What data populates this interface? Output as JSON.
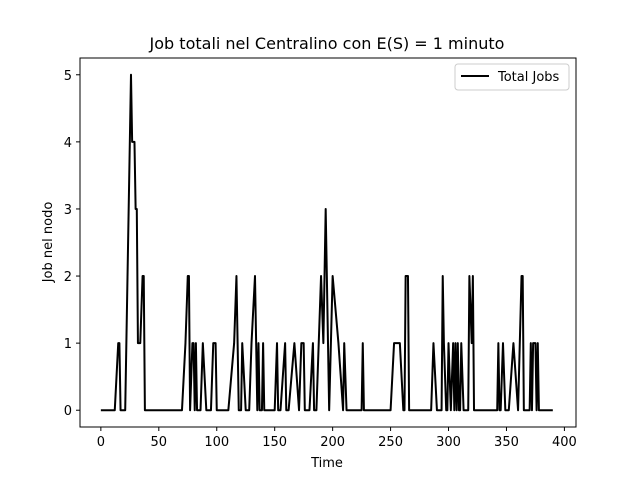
{
  "chart_data": {
    "type": "line",
    "title": "Job totali nel Centralino con E(S) = 1 minuto",
    "xlabel": "Time",
    "ylabel": "Job nel nodo",
    "xlim": [
      -18,
      410
    ],
    "ylim": [
      -0.25,
      5.25
    ],
    "x_ticks": [
      0,
      50,
      100,
      150,
      200,
      250,
      300,
      350,
      400
    ],
    "y_ticks": [
      0,
      1,
      2,
      3,
      4,
      5
    ],
    "grid": false,
    "legend_position": "top-right",
    "series": [
      {
        "name": "Total Jobs",
        "color": "#000000",
        "x": [
          0,
          12,
          15,
          16,
          17,
          21,
          22,
          25,
          26,
          27,
          28,
          29,
          30,
          31,
          32,
          33,
          34,
          36,
          37,
          38,
          39,
          40,
          45,
          55,
          65,
          70,
          73,
          75,
          76,
          77,
          79,
          80,
          81,
          82,
          83,
          84,
          85,
          86,
          88,
          91,
          92,
          93,
          95,
          97,
          98,
          99,
          100,
          101,
          103,
          110,
          115,
          117,
          118,
          119,
          120,
          121,
          122,
          125,
          128,
          130,
          133,
          134,
          135,
          136,
          137,
          138,
          139,
          140,
          141,
          142,
          144,
          148,
          150,
          152,
          153,
          155,
          159,
          160,
          161,
          162,
          167,
          171,
          173,
          175,
          176,
          180,
          183,
          184,
          186,
          188,
          190,
          192,
          193,
          194,
          195,
          196,
          197,
          200,
          205,
          209,
          210,
          212,
          215,
          220,
          225,
          226,
          227,
          230,
          235,
          240,
          245,
          250,
          253,
          256,
          258,
          261,
          262,
          263,
          264,
          265,
          266,
          270,
          275,
          280,
          285,
          287,
          290,
          293,
          294,
          295,
          296,
          298,
          299,
          300,
          302,
          304,
          305,
          306,
          307,
          308,
          309,
          310,
          311,
          313,
          317,
          318,
          320,
          321,
          322,
          323,
          324,
          325,
          327,
          330,
          335,
          340,
          342,
          343,
          344,
          345,
          347,
          349,
          350,
          352,
          356,
          360,
          363,
          364,
          365,
          366,
          367,
          368,
          370,
          371,
          372,
          373,
          374,
          375,
          376,
          377,
          378,
          380,
          382,
          386,
          387,
          388,
          389,
          390
        ],
        "y": [
          0,
          0,
          1,
          1,
          0,
          0,
          1,
          4,
          5,
          4,
          4,
          4,
          3,
          3,
          1,
          1,
          1,
          2,
          2,
          0,
          0,
          0,
          0,
          0,
          0,
          0,
          1,
          2,
          2,
          0,
          1,
          1,
          0,
          1,
          0,
          0,
          0,
          0,
          1,
          0,
          0,
          0,
          0,
          1,
          1,
          1,
          0,
          0,
          0,
          0,
          1,
          2,
          1,
          0,
          0,
          0,
          1,
          0,
          0,
          1,
          2,
          1,
          0,
          1,
          0,
          0,
          0,
          1,
          0,
          0,
          0,
          0,
          0,
          1,
          0,
          0,
          1,
          0,
          0,
          0,
          1,
          0,
          1,
          1,
          0,
          0,
          1,
          0,
          0,
          1,
          2,
          1,
          2,
          3,
          2,
          1,
          0,
          2,
          1,
          0,
          1,
          0,
          0,
          0,
          0,
          1,
          0,
          0,
          0,
          0,
          0,
          0,
          1,
          1,
          1,
          0,
          0,
          2,
          2,
          2,
          0,
          0,
          0,
          0,
          0,
          1,
          0,
          0,
          0,
          2,
          1,
          0,
          0,
          1,
          0,
          1,
          0,
          1,
          0,
          1,
          0,
          0,
          1,
          0,
          0,
          2,
          1,
          2,
          0,
          0,
          0,
          0,
          0,
          0,
          0,
          0,
          0,
          1,
          0,
          0,
          1,
          0,
          0,
          0,
          1,
          0,
          2,
          2,
          0,
          0,
          0,
          0,
          0,
          1,
          0,
          1,
          1,
          1,
          0,
          1,
          0,
          0,
          0,
          0,
          0,
          0,
          0,
          0
        ]
      }
    ]
  }
}
